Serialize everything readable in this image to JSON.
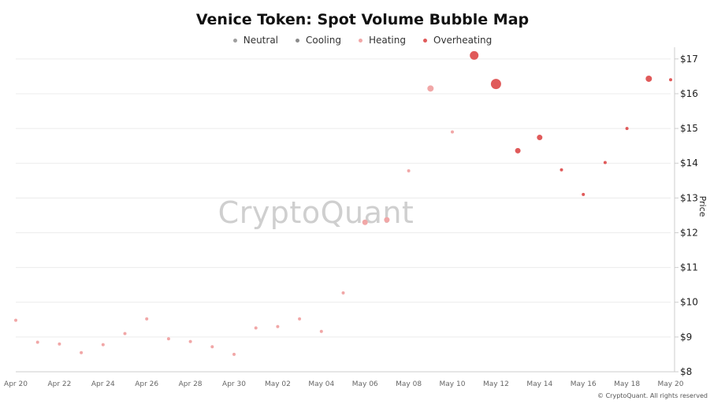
{
  "colors": {
    "neutral": "#9e9e9e",
    "cooling": "#8a8a8a",
    "heating": "#f1a7a7",
    "overheating": "#e05a5a",
    "grid": "#ececec",
    "axis": "#cccccc"
  },
  "watermark": "CryptoQuant",
  "copyright": "© CryptoQuant. All rights reserved",
  "chart_data": {
    "type": "scatter",
    "title": "Venice Token: Spot Volume Bubble Map",
    "ylabel": "Price",
    "xlabel": "",
    "y_axis_side": "right",
    "ylim": [
      8,
      17.2
    ],
    "yticks": [
      8,
      9,
      10,
      11,
      12,
      13,
      14,
      15,
      16,
      17
    ],
    "ytick_labels": [
      "$8",
      "$9",
      "$10",
      "$11",
      "$12",
      "$13",
      "$14",
      "$15",
      "$16",
      "$17"
    ],
    "xlim": [
      "Apr 20",
      "May 20"
    ],
    "xtick_labels": [
      "Apr 20",
      "Apr 22",
      "Apr 24",
      "Apr 26",
      "Apr 28",
      "Apr 30",
      "May 02",
      "May 04",
      "May 06",
      "May 08",
      "May 10",
      "May 12",
      "May 14",
      "May 16",
      "May 18",
      "May 20"
    ],
    "grid": true,
    "legend_position": "top-center",
    "legend": [
      {
        "name": "Neutral",
        "key": "neutral"
      },
      {
        "name": "Cooling",
        "key": "cooling"
      },
      {
        "name": "Heating",
        "key": "heating"
      },
      {
        "name": "Overheating",
        "key": "overheating"
      }
    ],
    "points": [
      {
        "date": "Apr 20",
        "price": 9.48,
        "category": "heating",
        "size": 1
      },
      {
        "date": "Apr 21",
        "price": 8.85,
        "category": "heating",
        "size": 1
      },
      {
        "date": "Apr 22",
        "price": 8.8,
        "category": "heating",
        "size": 1
      },
      {
        "date": "Apr 23",
        "price": 8.55,
        "category": "heating",
        "size": 1
      },
      {
        "date": "Apr 24",
        "price": 8.78,
        "category": "heating",
        "size": 1
      },
      {
        "date": "Apr 25",
        "price": 9.1,
        "category": "heating",
        "size": 1
      },
      {
        "date": "Apr 26",
        "price": 9.52,
        "category": "heating",
        "size": 1
      },
      {
        "date": "Apr 27",
        "price": 8.95,
        "category": "heating",
        "size": 1
      },
      {
        "date": "Apr 28",
        "price": 8.87,
        "category": "heating",
        "size": 1
      },
      {
        "date": "Apr 29",
        "price": 8.72,
        "category": "heating",
        "size": 1
      },
      {
        "date": "Apr 30",
        "price": 8.5,
        "category": "heating",
        "size": 1
      },
      {
        "date": "May 01",
        "price": 9.26,
        "category": "heating",
        "size": 1
      },
      {
        "date": "May 02",
        "price": 9.3,
        "category": "heating",
        "size": 1
      },
      {
        "date": "May 03",
        "price": 9.52,
        "category": "heating",
        "size": 1
      },
      {
        "date": "May 04",
        "price": 9.16,
        "category": "heating",
        "size": 1
      },
      {
        "date": "May 05",
        "price": 10.27,
        "category": "heating",
        "size": 1
      },
      {
        "date": "May 06",
        "price": 12.3,
        "category": "heating",
        "size": 2
      },
      {
        "date": "May 07",
        "price": 12.37,
        "category": "heating",
        "size": 2
      },
      {
        "date": "May 08",
        "price": 13.78,
        "category": "heating",
        "size": 1
      },
      {
        "date": "May 09",
        "price": 16.15,
        "category": "heating",
        "size": 3
      },
      {
        "date": "May 10",
        "price": 14.9,
        "category": "heating",
        "size": 1
      },
      {
        "date": "May 11",
        "price": 17.1,
        "category": "overheating",
        "size": 4
      },
      {
        "date": "May 12",
        "price": 16.28,
        "category": "overheating",
        "size": 5
      },
      {
        "date": "May 13",
        "price": 14.36,
        "category": "overheating",
        "size": 2
      },
      {
        "date": "May 14",
        "price": 14.74,
        "category": "overheating",
        "size": 2
      },
      {
        "date": "May 15",
        "price": 13.81,
        "category": "overheating",
        "size": 1
      },
      {
        "date": "May 16",
        "price": 13.1,
        "category": "overheating",
        "size": 1
      },
      {
        "date": "May 17",
        "price": 14.02,
        "category": "overheating",
        "size": 1
      },
      {
        "date": "May 18",
        "price": 15.0,
        "category": "overheating",
        "size": 1
      },
      {
        "date": "May 19",
        "price": 16.43,
        "category": "overheating",
        "size": 3
      },
      {
        "date": "May 20",
        "price": 16.4,
        "category": "overheating",
        "size": 1
      }
    ]
  }
}
